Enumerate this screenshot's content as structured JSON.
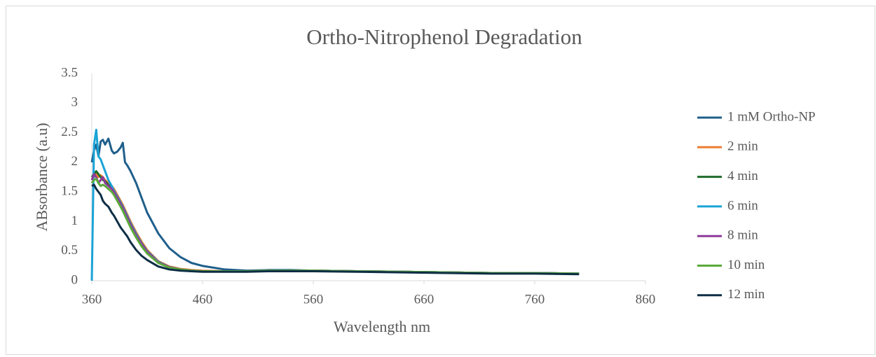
{
  "chart_data": {
    "type": "line",
    "title": "Ortho-Nitrophenol Degradation",
    "x_label": "Wavelength nm",
    "y_label": "ABsorbance (a.u)",
    "x": [
      360,
      362,
      364,
      366,
      368,
      370,
      372,
      375,
      378,
      380,
      383,
      386,
      388,
      390,
      392,
      395,
      400,
      405,
      410,
      420,
      430,
      440,
      450,
      460,
      480,
      500,
      520,
      540,
      560,
      600,
      640,
      680,
      720,
      760,
      800
    ],
    "xlim": [
      360,
      860
    ],
    "xticks": [
      360,
      460,
      560,
      660,
      760,
      860
    ],
    "ylim": [
      0,
      3.5
    ],
    "yticks": [
      0,
      0.5,
      1,
      1.5,
      2,
      2.5,
      3,
      3.5
    ],
    "grid": false,
    "legend": "right",
    "series": [
      {
        "name": "1 mM Ortho-NP",
        "color": "#1f5f8b",
        "values": [
          2.0,
          2.2,
          2.3,
          2.1,
          2.35,
          2.38,
          2.3,
          2.4,
          2.2,
          2.15,
          2.18,
          2.25,
          2.33,
          2.0,
          1.95,
          1.85,
          1.65,
          1.4,
          1.15,
          0.8,
          0.55,
          0.4,
          0.3,
          0.25,
          0.19,
          0.17,
          0.18,
          0.18,
          0.17,
          0.16,
          0.15,
          0.14,
          0.13,
          0.13,
          0.12
        ]
      },
      {
        "name": "2 min",
        "color": "#ed7d31",
        "values": [
          1.7,
          1.75,
          1.8,
          1.75,
          1.78,
          1.75,
          1.7,
          1.65,
          1.6,
          1.55,
          1.45,
          1.35,
          1.28,
          1.2,
          1.12,
          1.0,
          0.82,
          0.66,
          0.52,
          0.33,
          0.24,
          0.2,
          0.18,
          0.17,
          0.16,
          0.16,
          0.17,
          0.17,
          0.17,
          0.16,
          0.15,
          0.14,
          0.13,
          0.13,
          0.12
        ]
      },
      {
        "name": "4 min",
        "color": "#1e6b2a",
        "values": [
          1.75,
          1.8,
          1.85,
          1.8,
          1.75,
          1.7,
          1.68,
          1.62,
          1.57,
          1.52,
          1.42,
          1.32,
          1.25,
          1.17,
          1.09,
          0.97,
          0.79,
          0.63,
          0.5,
          0.32,
          0.23,
          0.19,
          0.17,
          0.16,
          0.16,
          0.16,
          0.17,
          0.17,
          0.17,
          0.16,
          0.15,
          0.14,
          0.13,
          0.13,
          0.12
        ]
      },
      {
        "name": "6 min",
        "color": "#1aa3d6",
        "values": [
          0,
          2.3,
          2.55,
          2.1,
          2.05,
          1.95,
          1.85,
          1.7,
          1.6,
          1.52,
          1.42,
          1.32,
          1.25,
          1.17,
          1.09,
          0.97,
          0.79,
          0.63,
          0.5,
          0.32,
          0.23,
          0.19,
          0.17,
          0.16,
          0.16,
          0.16,
          0.17,
          0.17,
          0.17,
          0.16,
          0.15,
          0.14,
          0.13,
          0.13,
          0.12
        ]
      },
      {
        "name": "8 min",
        "color": "#8e3a9a",
        "values": [
          1.7,
          1.8,
          1.75,
          1.65,
          1.7,
          1.75,
          1.65,
          1.6,
          1.55,
          1.5,
          1.4,
          1.3,
          1.23,
          1.15,
          1.07,
          0.95,
          0.77,
          0.62,
          0.49,
          0.31,
          0.23,
          0.19,
          0.17,
          0.16,
          0.16,
          0.16,
          0.17,
          0.17,
          0.17,
          0.16,
          0.15,
          0.14,
          0.13,
          0.13,
          0.12
        ]
      },
      {
        "name": "10 min",
        "color": "#5aaa3a",
        "values": [
          1.65,
          1.7,
          1.72,
          1.65,
          1.6,
          1.62,
          1.6,
          1.55,
          1.5,
          1.45,
          1.35,
          1.25,
          1.18,
          1.1,
          1.02,
          0.9,
          0.73,
          0.58,
          0.46,
          0.3,
          0.22,
          0.19,
          0.17,
          0.16,
          0.16,
          0.16,
          0.17,
          0.17,
          0.17,
          0.16,
          0.15,
          0.14,
          0.13,
          0.13,
          0.12
        ]
      },
      {
        "name": "12 min",
        "color": "#0e2e45",
        "values": [
          1.6,
          1.62,
          1.55,
          1.5,
          1.45,
          1.35,
          1.3,
          1.25,
          1.15,
          1.1,
          1.0,
          0.9,
          0.85,
          0.8,
          0.75,
          0.65,
          0.52,
          0.42,
          0.35,
          0.24,
          0.19,
          0.17,
          0.16,
          0.15,
          0.15,
          0.15,
          0.16,
          0.16,
          0.16,
          0.15,
          0.14,
          0.13,
          0.12,
          0.12,
          0.11
        ]
      }
    ]
  }
}
